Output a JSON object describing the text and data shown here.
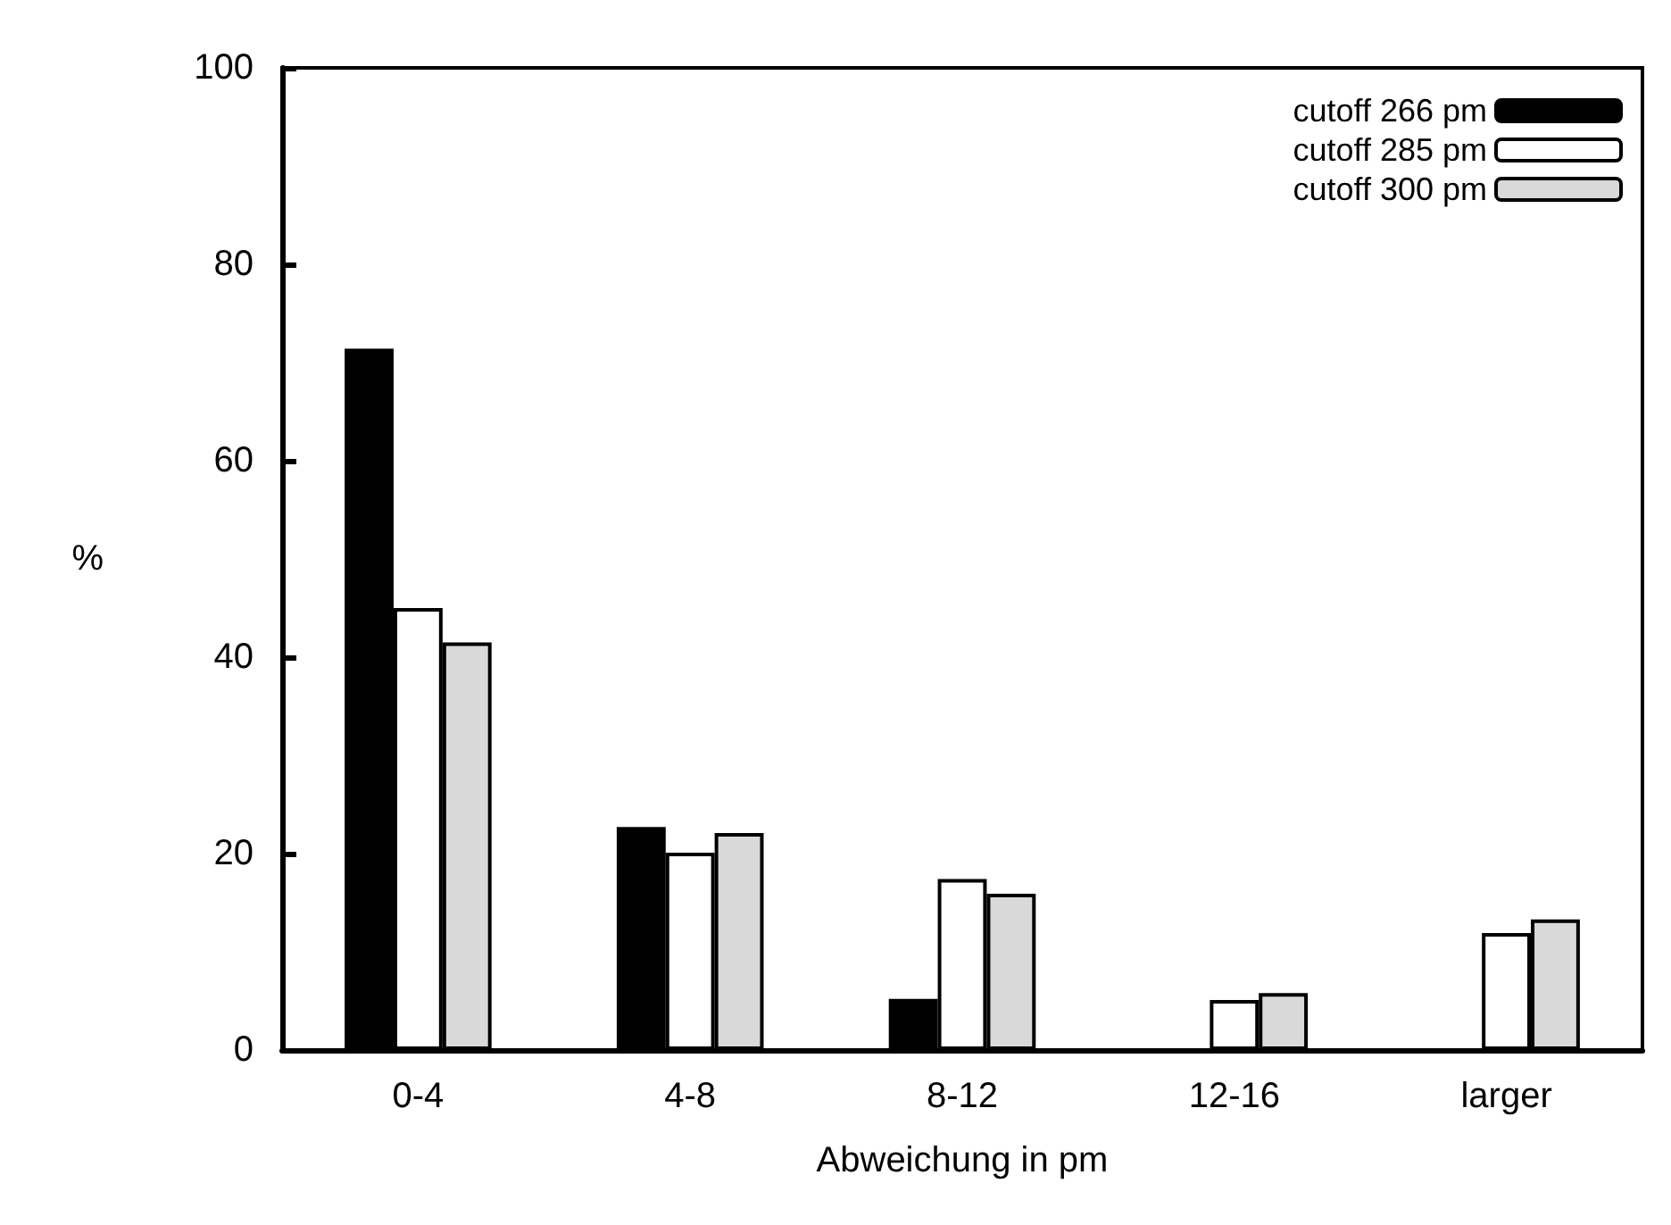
{
  "chart_data": {
    "type": "bar",
    "xlabel": "Abweichung in pm",
    "ylabel": "%",
    "categories": [
      "0-4",
      "4-8",
      "8-12",
      "12-16",
      "larger"
    ],
    "series": [
      {
        "name": "cutoff 266 pm",
        "color": "#000000",
        "values": [
          71.4,
          22.7,
          5.2,
          0,
          0
        ]
      },
      {
        "name": "cutoff 285 pm",
        "color": "#ffffff",
        "values": [
          45,
          20.1,
          17.4,
          5.1,
          11.9
        ]
      },
      {
        "name": "cutoff 300 pm",
        "color": "#d9d9d9",
        "values": [
          41.5,
          22.1,
          15.9,
          5.8,
          13.3
        ]
      }
    ],
    "ylim": [
      0,
      100
    ],
    "yticks": [
      0,
      20,
      40,
      60,
      80,
      100
    ],
    "grid": false,
    "legend": "top right"
  }
}
